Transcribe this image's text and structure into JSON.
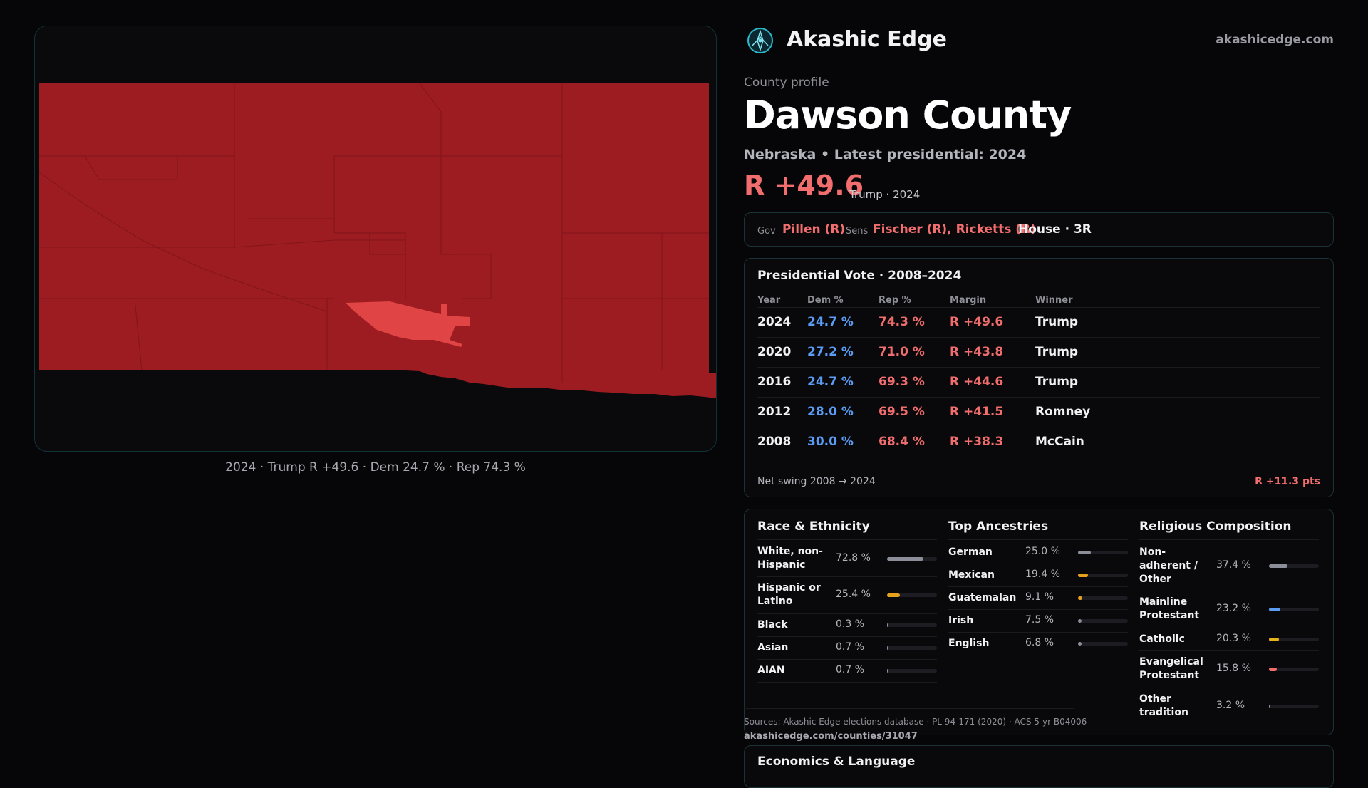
{
  "map": {
    "caption": "2024 · Trump R +49.6 · Dem 24.7 % · Rep 74.3 %",
    "county_color": "#9d1c22",
    "city_color": "#e04444",
    "border_color": "#15a3b8"
  },
  "header": {
    "brand": "Akashic Edge",
    "site": "akashicedge.com",
    "logo_icon": "compass-rose-icon"
  },
  "profile": {
    "eyebrow": "County profile",
    "title": "Dawson County",
    "subtitle": "Nebraska • Latest presidential: 2024",
    "margin": "R +49.6",
    "margin_sub": "Trump · 2024"
  },
  "officials": {
    "gov_label": "Gov",
    "gov": "Pillen (R)",
    "sens_label": "Sens",
    "sens": "Fischer (R), Ricketts (R)",
    "house": "House · 3R"
  },
  "presidential": {
    "title": "Presidential Vote · 2008–2024",
    "headers": [
      "Year",
      "Dem %",
      "Rep %",
      "Margin",
      "Winner"
    ],
    "rows": [
      {
        "year": "2024",
        "dem": "24.7 %",
        "rep": "74.3 %",
        "margin": "R +49.6",
        "winner": "Trump"
      },
      {
        "year": "2020",
        "dem": "27.2 %",
        "rep": "71.0 %",
        "margin": "R +43.8",
        "winner": "Trump"
      },
      {
        "year": "2016",
        "dem": "24.7 %",
        "rep": "69.3 %",
        "margin": "R +44.6",
        "winner": "Trump"
      },
      {
        "year": "2012",
        "dem": "28.0 %",
        "rep": "69.5 %",
        "margin": "R +41.5",
        "winner": "Romney"
      },
      {
        "year": "2008",
        "dem": "30.0 %",
        "rep": "68.4 %",
        "margin": "R +38.3",
        "winner": "McCain"
      }
    ],
    "swing_label": "Net swing 2008 → 2024",
    "swing_value": "R +11.3 pts"
  },
  "race": {
    "title": "Race & Ethnicity",
    "items": [
      {
        "label": "White, non-Hispanic",
        "value": "72.8 %",
        "pct": 72.8,
        "color": "#8c8f99"
      },
      {
        "label": "Hispanic or Latino",
        "value": "25.4 %",
        "pct": 25.4,
        "color": "#e6a11c"
      },
      {
        "label": "Black",
        "value": "0.3 %",
        "pct": 0.3,
        "color": "#8c8f99"
      },
      {
        "label": "Asian",
        "value": "0.7 %",
        "pct": 0.7,
        "color": "#8c8f99"
      },
      {
        "label": "AIAN",
        "value": "0.7 %",
        "pct": 0.7,
        "color": "#8c8f99"
      }
    ]
  },
  "ancestry": {
    "title": "Top Ancestries",
    "items": [
      {
        "label": "German",
        "value": "25.0 %",
        "pct": 25.0,
        "color": "#8c8f99"
      },
      {
        "label": "Mexican",
        "value": "19.4 %",
        "pct": 19.4,
        "color": "#e6a11c"
      },
      {
        "label": "Guatemalan",
        "value": "9.1 %",
        "pct": 9.1,
        "color": "#e6a11c"
      },
      {
        "label": "Irish",
        "value": "7.5 %",
        "pct": 7.5,
        "color": "#8c8f99"
      },
      {
        "label": "English",
        "value": "6.8 %",
        "pct": 6.8,
        "color": "#8c8f99"
      }
    ]
  },
  "religion": {
    "title": "Religious Composition",
    "items": [
      {
        "label": "Non-adherent / Other",
        "value": "37.4 %",
        "pct": 37.4,
        "color": "#8c8f99"
      },
      {
        "label": "Mainline Protestant",
        "value": "23.2 %",
        "pct": 23.2,
        "color": "#5b9df5"
      },
      {
        "label": "Catholic",
        "value": "20.3 %",
        "pct": 20.3,
        "color": "#e6b31c"
      },
      {
        "label": "Evangelical Protestant",
        "value": "15.8 %",
        "pct": 15.8,
        "color": "#f26d6d"
      },
      {
        "label": "Other tradition",
        "value": "3.2 %",
        "pct": 3.2,
        "color": "#8c8f99"
      }
    ]
  },
  "sources": {
    "text": "Sources: Akashic Edge elections database · PL 94-171 (2020) · ACS 5-yr B04006",
    "link": "akashicedge.com/counties/31047"
  },
  "economics": {
    "title": "Economics & Language"
  }
}
